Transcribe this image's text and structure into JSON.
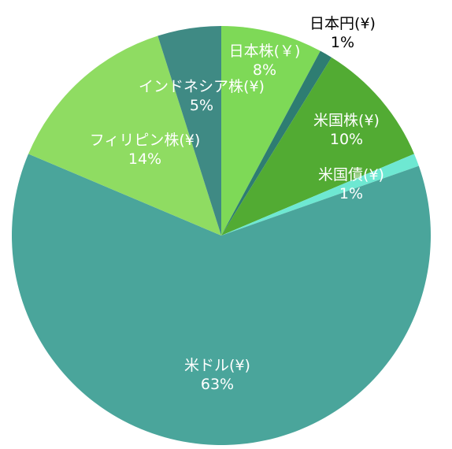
{
  "chart_data": {
    "type": "pie",
    "title": "",
    "legend": "none",
    "start_angle_deg": 0,
    "direction": "clockwise",
    "slices": [
      {
        "label": "日本株(￥)",
        "value": 8,
        "value_text": "8%",
        "color": "#7ed957",
        "text_color": "#ffffff"
      },
      {
        "label": "日本円(¥)",
        "value": 1,
        "value_text": "1%",
        "color": "#2e7d72",
        "text_color": "#000000"
      },
      {
        "label": "米国株(¥)",
        "value": 10,
        "value_text": "10%",
        "color": "#52ab33",
        "text_color": "#ffffff"
      },
      {
        "label": "米国債(¥)",
        "value": 1,
        "value_text": "1%",
        "color": "#6ee8d2",
        "text_color": "#ffffff"
      },
      {
        "label": "米ドル(¥)",
        "value": 63,
        "value_text": "63%",
        "color": "#4aa59b",
        "text_color": "#ffffff"
      },
      {
        "label": "フィリピン株(¥)",
        "value": 14,
        "value_text": "14%",
        "color": "#8fdc62",
        "text_color": "#ffffff"
      },
      {
        "label": "インドネシア株(¥)",
        "value": 5,
        "value_text": "5%",
        "color": "#3f8a84",
        "text_color": "#ffffff"
      }
    ]
  }
}
